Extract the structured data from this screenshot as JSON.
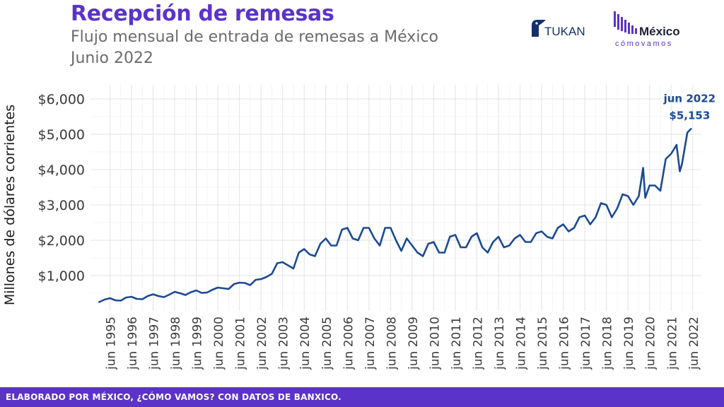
{
  "header": {
    "title": "Recepción de remesas",
    "subtitle": "Flujo mensual de entrada de remesas a México",
    "subtitle2": "Junio 2022"
  },
  "logos": {
    "tukan": "TUKAN",
    "mcv_main": "México",
    "mcv_sub": "cómovamos"
  },
  "footer": {
    "text": "ELABORADO POR MÉXICO, ¿CÓMO VAMOS? CON DATOS DE BANXICO."
  },
  "colors": {
    "title": "#5b33c9",
    "line": "#1b4a93",
    "footer_bg": "#5b33c9"
  },
  "chart_data": {
    "type": "line",
    "ylabel": "Millones de dólares corrientes",
    "ylim": [
      0,
      6400
    ],
    "y_ticks": [
      1000,
      2000,
      3000,
      4000,
      5000,
      6000
    ],
    "y_tick_labels": [
      "$1,000",
      "$2,000",
      "$3,000",
      "$4,000",
      "$5,000",
      "$6,000"
    ],
    "x_ticks": [
      1995.5,
      1996.5,
      1997.5,
      1998.5,
      1999.5,
      2000.5,
      2001.5,
      2002.5,
      2003.5,
      2004.5,
      2005.5,
      2006.5,
      2007.5,
      2008.5,
      2009.5,
      2010.5,
      2011.5,
      2012.5,
      2013.5,
      2014.5,
      2015.5,
      2016.5,
      2017.5,
      2018.5,
      2019.5,
      2020.5,
      2021.5,
      2022.5
    ],
    "x_tick_labels": [
      "jun 1995",
      "jun 1996",
      "jun 1997",
      "jun 1998",
      "jun 1999",
      "jun 2000",
      "jun 2001",
      "jun 2002",
      "jun 2003",
      "jun 2004",
      "jun 2005",
      "jun 2006",
      "jun 2007",
      "jun 2008",
      "jun 2009",
      "jun 2010",
      "jun 2011",
      "jun 2012",
      "jun 2013",
      "jun 2014",
      "jun 2015",
      "jun 2016",
      "jun 2017",
      "jun 2018",
      "jun 2019",
      "jun 2020",
      "jun 2021",
      "jun 2022"
    ],
    "xlim": [
      1994.6,
      2022.9
    ],
    "grid": true,
    "series": [
      {
        "x": [
          1995.0,
          1995.25,
          1995.5,
          1995.75,
          1996.0,
          1996.25,
          1996.5,
          1996.75,
          1997.0,
          1997.25,
          1997.5,
          1997.75,
          1998.0,
          1998.25,
          1998.5,
          1998.75,
          1999.0,
          1999.25,
          1999.5,
          1999.75,
          2000.0,
          2000.25,
          2000.5,
          2000.75,
          2001.0,
          2001.25,
          2001.5,
          2001.75,
          2002.0,
          2002.25,
          2002.5,
          2002.75,
          2003.0,
          2003.25,
          2003.5,
          2003.75,
          2004.0,
          2004.25,
          2004.5,
          2004.75,
          2005.0,
          2005.25,
          2005.5,
          2005.75,
          2006.0,
          2006.25,
          2006.5,
          2006.75,
          2007.0,
          2007.25,
          2007.5,
          2007.75,
          2008.0,
          2008.25,
          2008.5,
          2008.75,
          2009.0,
          2009.25,
          2009.5,
          2009.75,
          2010.0,
          2010.25,
          2010.5,
          2010.75,
          2011.0,
          2011.25,
          2011.5,
          2011.75,
          2012.0,
          2012.25,
          2012.5,
          2012.75,
          2013.0,
          2013.25,
          2013.5,
          2013.75,
          2014.0,
          2014.25,
          2014.5,
          2014.75,
          2015.0,
          2015.25,
          2015.5,
          2015.75,
          2016.0,
          2016.25,
          2016.5,
          2016.75,
          2017.0,
          2017.25,
          2017.5,
          2017.75,
          2018.0,
          2018.25,
          2018.5,
          2018.75,
          2019.0,
          2019.25,
          2019.5,
          2019.75,
          2020.0,
          2020.2,
          2020.3,
          2020.5,
          2020.75,
          2021.0,
          2021.25,
          2021.5,
          2021.75,
          2021.9,
          2022.0,
          2022.25,
          2022.42
        ],
        "values": [
          250,
          320,
          360,
          300,
          290,
          380,
          400,
          340,
          330,
          420,
          470,
          420,
          390,
          460,
          540,
          500,
          450,
          530,
          580,
          510,
          520,
          600,
          660,
          640,
          620,
          760,
          800,
          790,
          730,
          880,
          900,
          960,
          1050,
          1350,
          1380,
          1290,
          1200,
          1650,
          1750,
          1600,
          1550,
          1900,
          2050,
          1850,
          1850,
          2300,
          2350,
          2050,
          2000,
          2350,
          2350,
          2050,
          1850,
          2350,
          2350,
          2000,
          1700,
          2050,
          1850,
          1650,
          1550,
          1900,
          1950,
          1650,
          1650,
          2100,
          2150,
          1800,
          1800,
          2100,
          2200,
          1800,
          1650,
          1950,
          2100,
          1800,
          1850,
          2050,
          2150,
          1950,
          1950,
          2200,
          2250,
          2100,
          2050,
          2350,
          2450,
          2250,
          2350,
          2650,
          2700,
          2450,
          2650,
          3050,
          3000,
          2650,
          2900,
          3300,
          3250,
          3000,
          3250,
          4050,
          3200,
          3550,
          3550,
          3400,
          4300,
          4450,
          4700,
          3950,
          4150,
          5050,
          5153
        ]
      }
    ],
    "annotation": {
      "x": 2022.42,
      "y": 5153,
      "date_label": "jun 2022",
      "value_label": "$5,153"
    }
  }
}
